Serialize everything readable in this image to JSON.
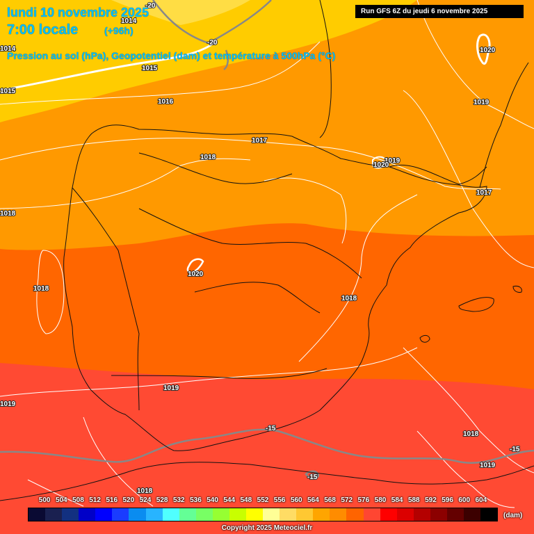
{
  "header": {
    "date": "lundi 10 novembre 2025",
    "time": "7:00 locale",
    "lead": "(+96h)",
    "subtitle": "Pression au sol (hPa), Geopotentiel (dam) et température à 500hPa (°C)",
    "run": "Run GFS 6Z du jeudi 6 novembre 2025"
  },
  "isobar_labels": [
    "1014",
    "1015",
    "1015",
    "1016",
    "1014",
    "1017",
    "1018",
    "1018",
    "1018",
    "1019",
    "1020",
    "1020",
    "1019",
    "1017",
    "1020",
    "1018",
    "1019",
    "1019",
    "1018",
    "1019",
    "1018"
  ],
  "temperature_labels": [
    "-20",
    "-20",
    "-15",
    "-15",
    "-15"
  ],
  "legend": {
    "values": [
      "500",
      "504",
      "508",
      "512",
      "516",
      "520",
      "524",
      "528",
      "532",
      "536",
      "540",
      "544",
      "548",
      "552",
      "556",
      "560",
      "564",
      "568",
      "572",
      "576",
      "580",
      "584",
      "588",
      "592",
      "596",
      "600",
      "604"
    ],
    "colors": [
      "#0a0a33",
      "#1a2050",
      "#123080",
      "#0000c8",
      "#0000ff",
      "#1a3cff",
      "#0a8cf0",
      "#28b4ff",
      "#50ffff",
      "#64ff96",
      "#78ff64",
      "#96ff32",
      "#c8ff00",
      "#ffff00",
      "#ffff96",
      "#ffdc64",
      "#ffc832",
      "#ffa500",
      "#ff8c00",
      "#ff6400",
      "#ff4632",
      "#ff0000",
      "#dc0000",
      "#b40000",
      "#8c0000",
      "#640000",
      "#3c0000",
      "#000000"
    ],
    "unit": "(dam)"
  },
  "map_colors": {
    "band_552_556": "#ffcc00",
    "band_556_560": "#ffdd44",
    "band_560_564": "#ff9900",
    "band_564_568": "#ff6600",
    "band_568_572": "#ff4433"
  },
  "copyright": "Copyright 2025 Meteociel.fr"
}
